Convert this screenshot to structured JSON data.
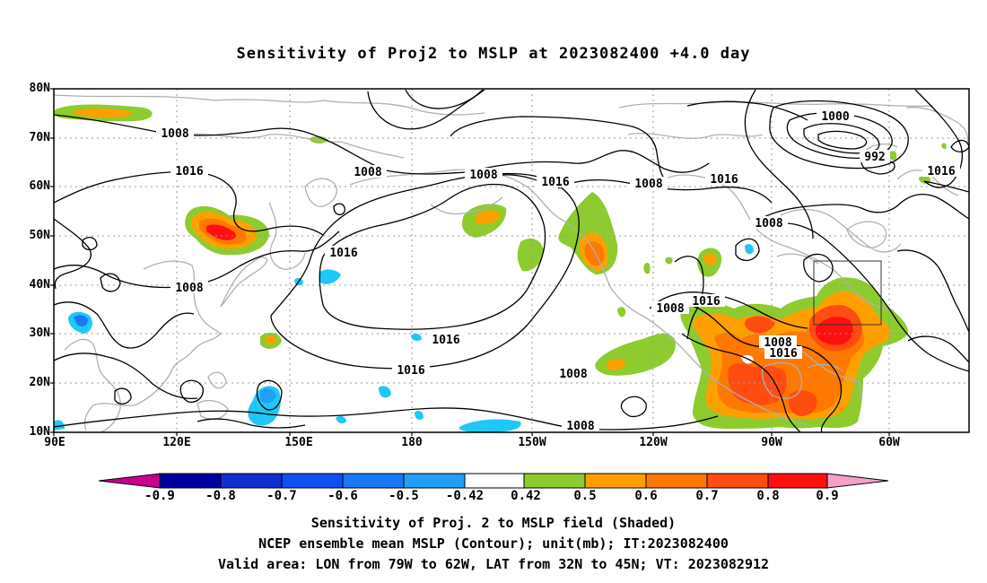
{
  "title": "Sensitivity of Proj2 to MSLP at 2023082400 +4.0 day",
  "map": {
    "lat_labels": [
      "80N",
      "70N",
      "60N",
      "50N",
      "40N",
      "30N",
      "20N",
      "10N"
    ],
    "lon_labels": [
      "90E",
      "120E",
      "150E",
      "180",
      "150W",
      "120W",
      "90W",
      "60W"
    ],
    "lon_range": [
      90,
      315
    ],
    "lat_range": [
      10,
      80
    ],
    "grid": "dotted",
    "coastline_color": "#b0b0b0",
    "contour_labels": [
      "1008",
      "1016",
      "1008",
      "1008",
      "1016",
      "1008",
      "1016",
      "1000",
      "992",
      "1016",
      "1008",
      "1016",
      "1008",
      "1016",
      "1016",
      "1016",
      "1008",
      "1008",
      "1008",
      "1008",
      "1016"
    ],
    "valid_area_box": {
      "lon": [
        -79,
        -62
      ],
      "lat": [
        32,
        45
      ]
    }
  },
  "colorbar": {
    "labels": [
      "-0.9",
      "-0.8",
      "-0.7",
      "-0.6",
      "-0.5",
      "-0.42",
      "0.42",
      "0.5",
      "0.6",
      "0.7",
      "0.8",
      "0.9"
    ],
    "colors": [
      "#0000a0",
      "#1030d0",
      "#1050f0",
      "#1a78f5",
      "#1fa0f5",
      "#1ec8f8",
      "#ffffff",
      "#8ecb2e",
      "#ffa000",
      "#ff7800",
      "#ff4c10",
      "#ff1010"
    ],
    "under_color": "#c8008c",
    "over_color": "#f5a0c8"
  },
  "footer": {
    "line1": "Sensitivity of Proj. 2 to MSLP field (Shaded)",
    "line2": "NCEP ensemble mean MSLP (Contour); unit(mb); IT:2023082400",
    "line3": "Valid area: LON from 79W to 62W, LAT from 32N to 45N; VT: 2023082912"
  }
}
